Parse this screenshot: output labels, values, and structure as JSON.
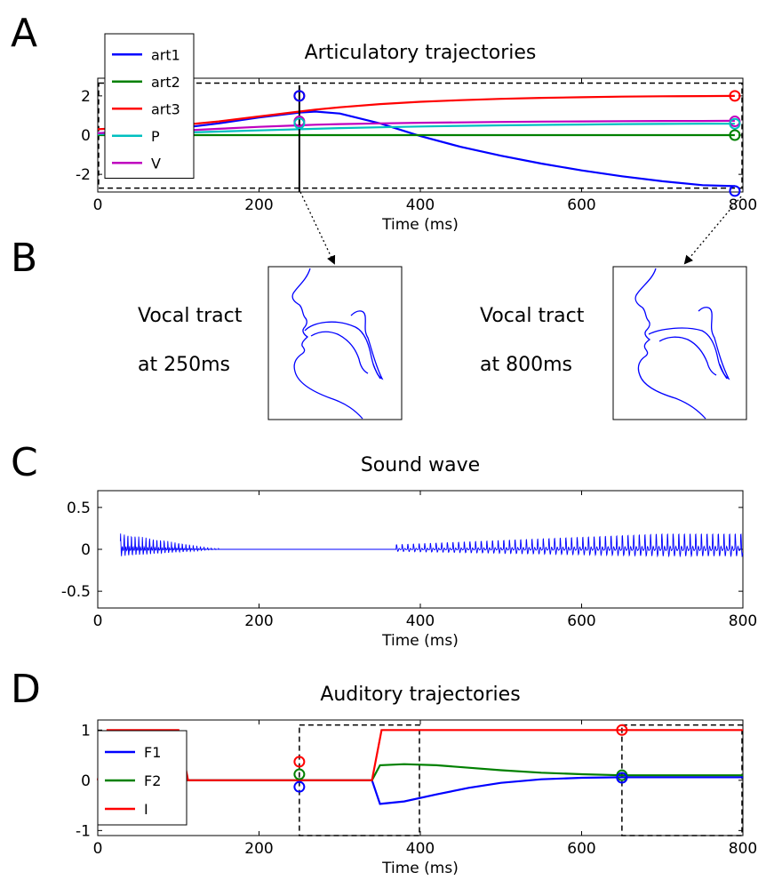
{
  "panel_labels": [
    "A",
    "B",
    "C",
    "D"
  ],
  "vocal_tract": {
    "left": {
      "line1": "Vocal tract",
      "line2": "at 250ms"
    },
    "right": {
      "line1": "Vocal tract",
      "line2": "at 800ms"
    }
  },
  "chart_data": [
    {
      "id": "articulatory",
      "type": "line",
      "title": "Articulatory trajectories",
      "xlabel": "Time (ms)",
      "ylabel": "",
      "xlim": [
        0,
        800
      ],
      "ylim": [
        -2.9,
        2.9
      ],
      "xticks": [
        0,
        200,
        400,
        600,
        800
      ],
      "yticks": [
        -2,
        0,
        2
      ],
      "legend": "top-left",
      "x": [
        0,
        100,
        150,
        200,
        250,
        270,
        300,
        350,
        400,
        450,
        500,
        550,
        600,
        650,
        700,
        750,
        790
      ],
      "series": [
        {
          "name": "art1",
          "color": "#0000ff",
          "values": [
            0.1,
            0.35,
            0.6,
            0.9,
            1.15,
            1.2,
            1.1,
            0.6,
            -0.05,
            -0.6,
            -1.05,
            -1.45,
            -1.8,
            -2.1,
            -2.35,
            -2.55,
            -2.6
          ]
        },
        {
          "name": "art2",
          "color": "#008000",
          "values": [
            0.0,
            0.0,
            0.0,
            0.0,
            0.0,
            0.0,
            0.0,
            0.0,
            0.0,
            0.0,
            0.0,
            0.0,
            0.0,
            0.0,
            0.0,
            0.0,
            0.0
          ]
        },
        {
          "name": "art3",
          "color": "#ff0000",
          "values": [
            0.3,
            0.5,
            0.7,
            0.95,
            1.2,
            1.3,
            1.42,
            1.58,
            1.7,
            1.78,
            1.85,
            1.9,
            1.93,
            1.96,
            1.98,
            1.99,
            2.0
          ]
        },
        {
          "name": "P",
          "color": "#00bfbf",
          "values": [
            0.05,
            0.12,
            0.18,
            0.24,
            0.3,
            0.32,
            0.36,
            0.4,
            0.44,
            0.47,
            0.5,
            0.52,
            0.54,
            0.56,
            0.57,
            0.58,
            0.58
          ]
        },
        {
          "name": "V",
          "color": "#bf00bf",
          "values": [
            0.1,
            0.22,
            0.32,
            0.42,
            0.5,
            0.53,
            0.56,
            0.6,
            0.63,
            0.65,
            0.67,
            0.69,
            0.7,
            0.71,
            0.72,
            0.72,
            0.73
          ]
        }
      ],
      "markers": [
        {
          "x": 250,
          "y": 2.0,
          "color": "#ff0000"
        },
        {
          "x": 250,
          "y": 2.0,
          "color": "#0000ff"
        },
        {
          "x": 250,
          "y": 0.7,
          "color": "#bf00bf"
        },
        {
          "x": 250,
          "y": 0.6,
          "color": "#00bfbf"
        },
        {
          "x": 790,
          "y": 2.0,
          "color": "#ff0000"
        },
        {
          "x": 790,
          "y": 0.7,
          "color": "#bf00bf"
        },
        {
          "x": 790,
          "y": 0.58,
          "color": "#00bfbf"
        },
        {
          "x": 790,
          "y": 0.0,
          "color": "#008000"
        },
        {
          "x": 790,
          "y": -2.85,
          "color": "#0000ff"
        }
      ],
      "vline_x": 250,
      "dashed_box": {
        "x": [
          0,
          800
        ],
        "y": [
          -2.7,
          2.65
        ]
      }
    },
    {
      "id": "sound",
      "type": "line",
      "title": "Sound wave",
      "xlabel": "Time (ms)",
      "ylabel": "",
      "xlim": [
        0,
        800
      ],
      "ylim": [
        -0.7,
        0.7
      ],
      "xticks": [
        0,
        200,
        400,
        600,
        800
      ],
      "yticks": [
        -0.5,
        0,
        0.5
      ],
      "series": [
        {
          "name": "",
          "color": "#0000ff",
          "segments": [
            {
              "start": 28,
              "end": 150,
              "period": 4.5,
              "amp_peak": 0.25,
              "amp_env": "decay"
            },
            {
              "start": 370,
              "end": 800,
              "period": 7,
              "amp_peak": 0.25,
              "amp_env": "grow"
            }
          ]
        }
      ]
    },
    {
      "id": "auditory",
      "type": "line",
      "title": "Auditory trajectories",
      "xlabel": "Time (ms)",
      "ylabel": "",
      "xlim": [
        0,
        800
      ],
      "ylim": [
        -1.1,
        1.2
      ],
      "xticks": [
        0,
        200,
        400,
        600,
        800
      ],
      "yticks": [
        -1,
        0,
        1
      ],
      "legend": "left",
      "series": [
        {
          "name": "F1",
          "color": "#0000ff",
          "x": [
            0,
            10,
            100,
            110,
            340,
            350,
            380,
            420,
            460,
            500,
            550,
            600,
            650,
            700,
            800
          ],
          "values": [
            0,
            -0.05,
            -0.05,
            0,
            0,
            -0.47,
            -0.42,
            -0.28,
            -0.15,
            -0.05,
            0.02,
            0.05,
            0.06,
            0.06,
            0.06
          ]
        },
        {
          "name": "F2",
          "color": "#008000",
          "x": [
            0,
            10,
            100,
            110,
            340,
            350,
            380,
            420,
            460,
            500,
            550,
            600,
            650,
            700,
            800
          ],
          "values": [
            0,
            0.02,
            0.02,
            0,
            0,
            0.3,
            0.32,
            0.3,
            0.25,
            0.2,
            0.15,
            0.12,
            0.1,
            0.1,
            0.1
          ]
        },
        {
          "name": "I",
          "color": "#ff0000",
          "x": [
            0,
            12,
            100,
            112,
            340,
            352,
            800
          ],
          "values": [
            0,
            1,
            1,
            0,
            0,
            1,
            1
          ]
        }
      ],
      "markers": [
        {
          "x": 250,
          "y": 0.37,
          "color": "#ff0000"
        },
        {
          "x": 250,
          "y": 0.12,
          "color": "#008000"
        },
        {
          "x": 250,
          "y": -0.13,
          "color": "#0000ff"
        },
        {
          "x": 650,
          "y": 1.0,
          "color": "#ff0000"
        },
        {
          "x": 650,
          "y": 0.1,
          "color": "#008000"
        },
        {
          "x": 650,
          "y": 0.05,
          "color": "#0000ff"
        }
      ],
      "dashed_boxes": [
        {
          "x": [
            250,
            400
          ],
          "y": [
            -1.1,
            1.1
          ]
        },
        {
          "x": [
            650,
            800
          ],
          "y": [
            -1.1,
            1.1
          ]
        }
      ]
    }
  ]
}
